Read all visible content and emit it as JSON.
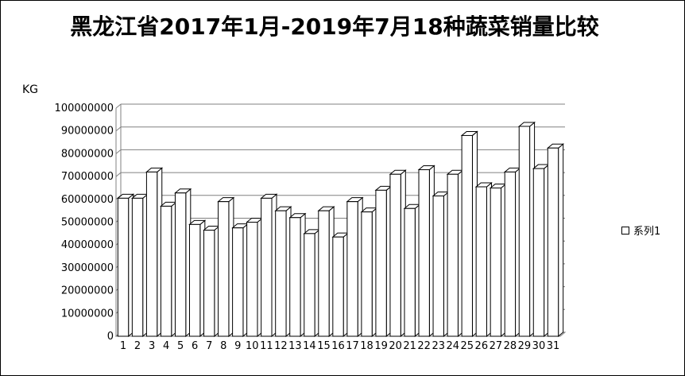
{
  "chart_data": {
    "type": "bar",
    "title": "黑龙江省2017年1月-2019年7月18种蔬菜销量比较",
    "ylabel": "KG",
    "categories": [
      "1",
      "2",
      "3",
      "4",
      "5",
      "6",
      "7",
      "8",
      "9",
      "10",
      "11",
      "12",
      "13",
      "14",
      "15",
      "16",
      "17",
      "18",
      "19",
      "20",
      "21",
      "22",
      "23",
      "24",
      "25",
      "26",
      "27",
      "28",
      "29",
      "30",
      "31"
    ],
    "series": [
      {
        "name": "系列1",
        "values": [
          60500000,
          60500000,
          72000000,
          57000000,
          62800000,
          49000000,
          46500000,
          59000000,
          47500000,
          50000000,
          60500000,
          55000000,
          52000000,
          45000000,
          55000000,
          43500000,
          59000000,
          54500000,
          64000000,
          71000000,
          56000000,
          73000000,
          61500000,
          71000000,
          88000000,
          65500000,
          65000000,
          72000000,
          92000000,
          73500000,
          82500000
        ]
      }
    ],
    "ylim": [
      0,
      100000000
    ],
    "yticks": [
      "0",
      "10000000",
      "20000000",
      "30000000",
      "40000000",
      "50000000",
      "60000000",
      "70000000",
      "80000000",
      "90000000",
      "100000000"
    ],
    "grid": true,
    "legend": "right",
    "colors": {
      "bar_fill": "#ffffff",
      "bar_stroke": "#000000",
      "grid": "#808080"
    }
  }
}
